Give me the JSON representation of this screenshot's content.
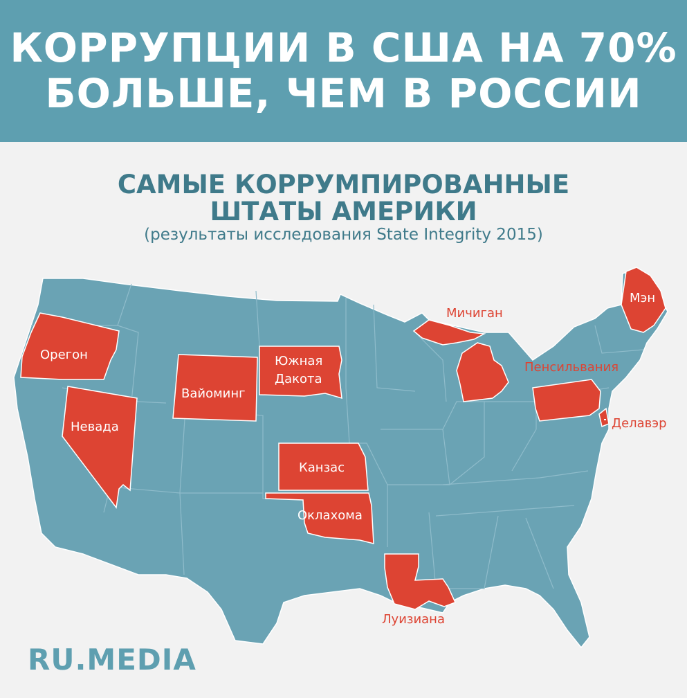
{
  "headline": {
    "line1": "КОРРУПЦИИ В США НА 70%",
    "line2": "БОЛЬШЕ, ЧЕМ В РОССИИ"
  },
  "subtitle": {
    "line1": "САМЫЕ КОРРУМПИРОВАННЫЕ",
    "line2": "ШТАТЫ АМЕРИКИ"
  },
  "note": "(результаты исследования State Integrity 2015)",
  "colors": {
    "banner": "#5e9fb0",
    "map_base": "#6aa3b4",
    "highlight": "#dd4433",
    "label_outside": "#dd4433",
    "label_inside": "#ffffff",
    "border": "#ffffff"
  },
  "highlighted_states": [
    {
      "id": "oregon",
      "label": "Орегон"
    },
    {
      "id": "nevada",
      "label": "Невада"
    },
    {
      "id": "wyoming",
      "label": "Вайоминг"
    },
    {
      "id": "south-dakota",
      "label": "Южная Дакота"
    },
    {
      "id": "kansas",
      "label": "Канзас"
    },
    {
      "id": "oklahoma",
      "label": "Оклахома"
    },
    {
      "id": "louisiana",
      "label": "Луизиана"
    },
    {
      "id": "michigan",
      "label": "Мичиган"
    },
    {
      "id": "pennsylvania",
      "label": "Пенсильвания"
    },
    {
      "id": "delaware",
      "label": "Делавэр"
    },
    {
      "id": "maine",
      "label": "Мэн"
    }
  ],
  "brand": "RU.MEDIA"
}
